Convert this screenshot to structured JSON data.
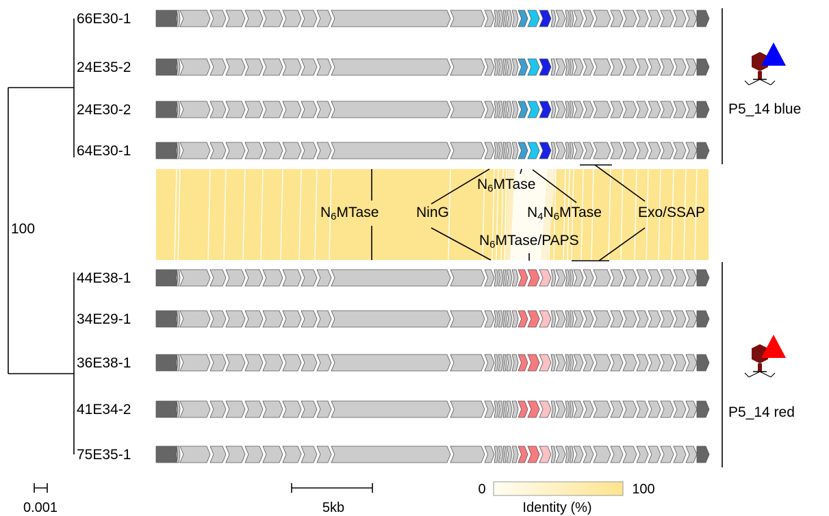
{
  "tree": {
    "bootstrap": "100",
    "scale_label": "0.001"
  },
  "strains_blue": [
    "66E30-1",
    "24E35-2",
    "24E30-2",
    "64E30-1"
  ],
  "strains_red": [
    "44E38-1",
    "34E29-1",
    "36E38-1",
    "41E34-2",
    "75E35-1"
  ],
  "clades": {
    "blue": {
      "label": "P5_14 blue",
      "color": "#0000ff"
    },
    "red": {
      "label": "P5_14 red",
      "color": "#ff0000"
    }
  },
  "annotations": {
    "n6mtase_left": {
      "pre": "N",
      "sub": "6",
      "post": "MTase"
    },
    "ning": "NinG",
    "n6mtase_top": {
      "pre": "N",
      "sub": "6",
      "post": "MTase"
    },
    "n4n6mtase": {
      "a": "N",
      "sub1": "4",
      "b": "N",
      "sub2": "6",
      "c": "MTase"
    },
    "exo_ssap": "Exo/SSAP",
    "n6mtase_paps": {
      "pre": "N",
      "sub": "6",
      "post": "MTase/PAPS"
    }
  },
  "scale_bar": {
    "label": "5kb"
  },
  "identity_legend": {
    "min": "0",
    "max": "100",
    "title": "Identity (%)"
  },
  "colors": {
    "gene_fill": "#cccccc",
    "gene_dark": "#666666",
    "blue_light": "#3d9ed0",
    "blue_cyan": "#1ec6ef",
    "blue_dark": "#1a20e6",
    "red_gene": "#f77a7f",
    "red_pale": "#f9c1c4",
    "identity_high": "#fde48e",
    "identity_low": "#fffdf2",
    "phage_body": "#7a0f0f"
  }
}
